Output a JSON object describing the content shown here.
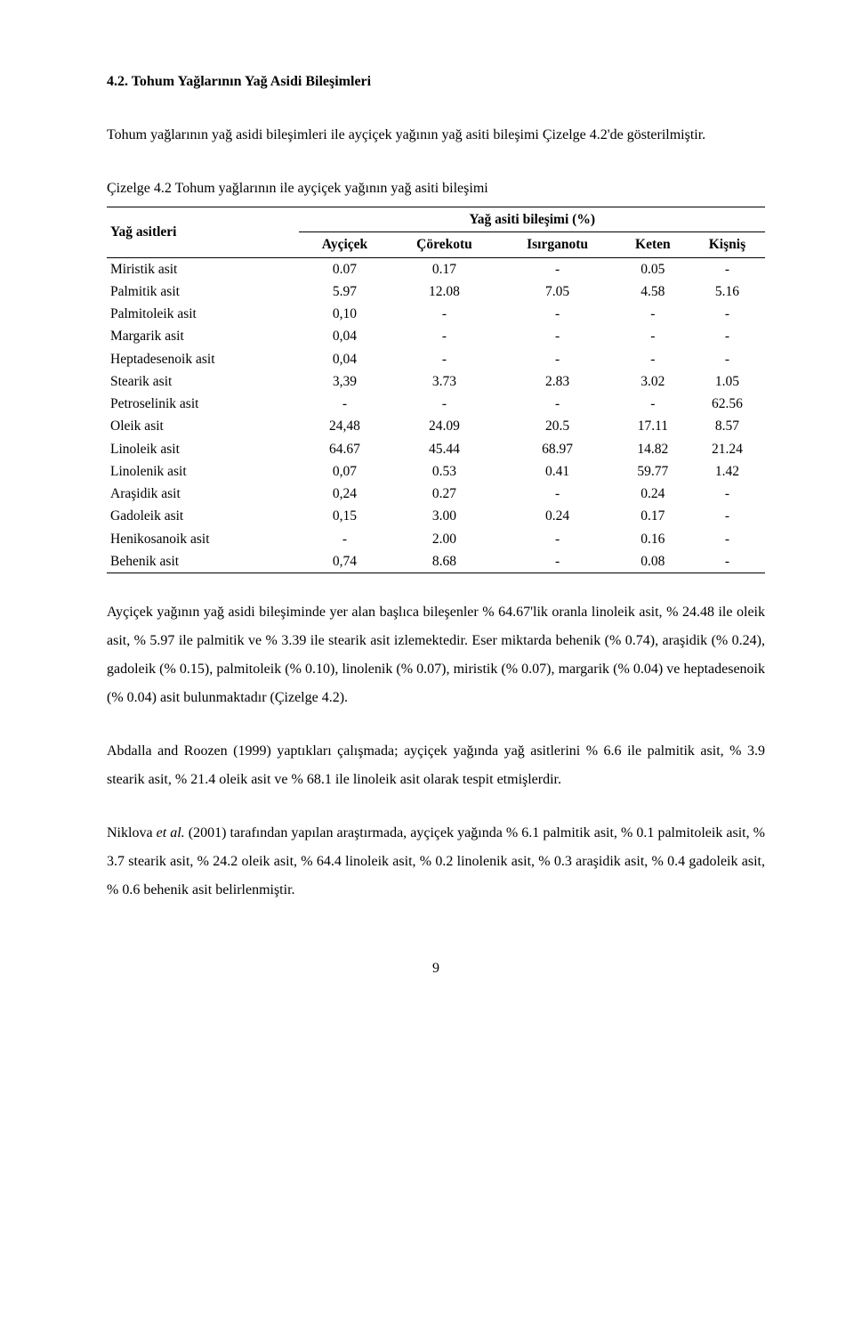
{
  "heading": "4.2. Tohum Yağlarının Yağ Asidi Bileşimleri",
  "intro": "Tohum yağlarının yağ asidi bileşimleri ile ayçiçek yağının yağ asiti bileşimi Çizelge 4.2'de gösterilmiştir.",
  "tableCaption": "Çizelge 4.2 Tohum yağlarının ile ayçiçek yağının yağ asiti bileşimi",
  "table": {
    "leftHeader": "Yağ asitleri",
    "groupHeader": "Yağ asiti bileşimi (%)",
    "columns": [
      "Ayçiçek",
      "Çörekotu",
      "Isırganotu",
      "Keten",
      "Kişniş"
    ],
    "rows": [
      {
        "label": "Miristik asit",
        "cells": [
          "0.07",
          "0.17",
          "-",
          "0.05",
          "-"
        ]
      },
      {
        "label": "Palmitik asit",
        "cells": [
          "5.97",
          "12.08",
          "7.05",
          "4.58",
          "5.16"
        ]
      },
      {
        "label": "Palmitoleik asit",
        "cells": [
          "0,10",
          "-",
          "-",
          "-",
          "-"
        ]
      },
      {
        "label": "Margarik asit",
        "cells": [
          "0,04",
          "-",
          "-",
          "-",
          "-"
        ]
      },
      {
        "label": "Heptadesenoik asit",
        "cells": [
          "0,04",
          "-",
          "-",
          "-",
          "-"
        ]
      },
      {
        "label": "Stearik asit",
        "cells": [
          "3,39",
          "3.73",
          "2.83",
          "3.02",
          "1.05"
        ]
      },
      {
        "label": "Petroselinik asit",
        "cells": [
          "-",
          "-",
          "-",
          "-",
          "62.56"
        ]
      },
      {
        "label": "Oleik asit",
        "cells": [
          "24,48",
          "24.09",
          "20.5",
          "17.11",
          "8.57"
        ]
      },
      {
        "label": "Linoleik asit",
        "cells": [
          "64.67",
          "45.44",
          "68.97",
          "14.82",
          "21.24"
        ]
      },
      {
        "label": "Linolenik asit",
        "cells": [
          "0,07",
          "0.53",
          "0.41",
          "59.77",
          "1.42"
        ]
      },
      {
        "label": "Araşidik asit",
        "cells": [
          "0,24",
          "0.27",
          "-",
          "0.24",
          "-"
        ]
      },
      {
        "label": "Gadoleik asit",
        "cells": [
          "0,15",
          "3.00",
          "0.24",
          "0.17",
          "-"
        ]
      },
      {
        "label": "Henikosanoik asit",
        "cells": [
          "-",
          "2.00",
          "-",
          "0.16",
          "-"
        ]
      },
      {
        "label": "Behenik asit",
        "cells": [
          "0,74",
          "8.68",
          "-",
          "0.08",
          "-"
        ]
      }
    ]
  },
  "para1": "Ayçiçek yağının yağ asidi bileşiminde yer alan başlıca bileşenler % 64.67'lik oranla linoleik asit, % 24.48 ile oleik asit, % 5.97 ile palmitik ve % 3.39 ile stearik asit izlemektedir. Eser miktarda behenik (% 0.74), araşidik (% 0.24), gadoleik (% 0.15), palmitoleik (% 0.10), linolenik (% 0.07), miristik (% 0.07), margarik (% 0.04) ve heptadesenoik (% 0.04) asit bulunmaktadır (Çizelge 4.2).",
  "para2": "Abdalla and Roozen (1999) yaptıkları çalışmada; ayçiçek yağında yağ asitlerini % 6.6 ile palmitik asit, % 3.9 stearik asit, % 21.4 oleik asit ve % 68.1 ile linoleik asit olarak tespit etmişlerdir.",
  "para3_prefix": "Niklova ",
  "para3_italic": "et al.",
  "para3_suffix": " (2001) tarafından yapılan araştırmada, ayçiçek yağında % 6.1 palmitik asit, % 0.1 palmitoleik asit, % 3.7 stearik asit, % 24.2 oleik asit, % 64.4 linoleik asit, % 0.2 linolenik asit, % 0.3 araşidik asit, % 0.4 gadoleik asit, % 0.6 behenik asit belirlenmiştir.",
  "pageNumber": "9",
  "style": {
    "fontFamily": "Times New Roman",
    "bodyFontSize": 16,
    "textColor": "#000000",
    "backgroundColor": "#ffffff"
  }
}
